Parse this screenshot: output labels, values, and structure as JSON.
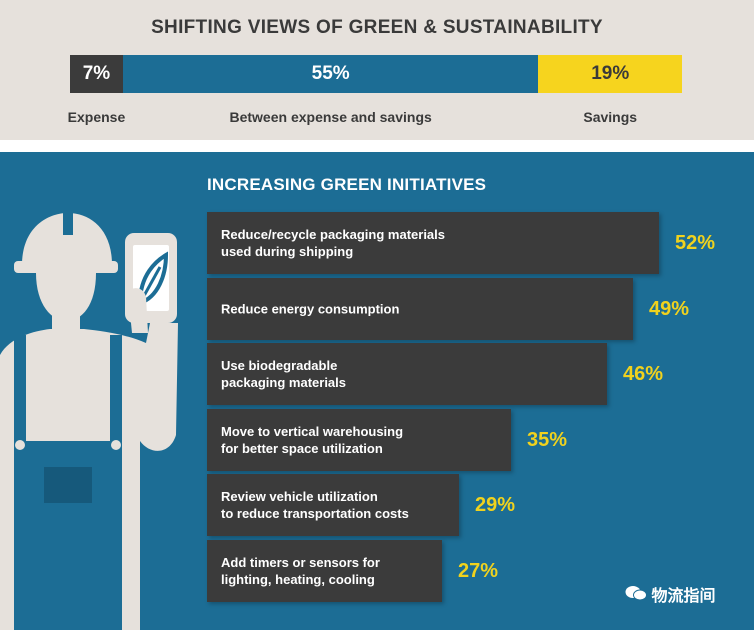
{
  "header": {
    "title": "SHIFTING VIEWS OF GREEN & SUSTAINABILITY"
  },
  "colors": {
    "expense": "#3b3b3b",
    "between": "#1c6d95",
    "savings": "#f6d41e",
    "bar": "#3b3b3b",
    "value": "#f0d21e"
  },
  "chart_data": [
    {
      "type": "bar",
      "orientation": "horizontal-stacked",
      "title": "SHIFTING VIEWS OF GREEN & SUSTAINABILITY",
      "categories": [
        "Expense",
        "Between expense and savings",
        "Savings"
      ],
      "values": [
        7,
        55,
        19
      ],
      "value_labels": [
        "7%",
        "55%",
        "19%"
      ],
      "unit": "%"
    },
    {
      "type": "bar",
      "orientation": "horizontal",
      "title": "INCREASING GREEN INITIATIVES",
      "categories": [
        [
          "Reduce/recycle packaging materials",
          "used during shipping"
        ],
        [
          "Reduce energy consumption"
        ],
        [
          "Use biodegradable",
          "packaging materials"
        ],
        [
          "Move to vertical warehousing",
          "for better space utilization"
        ],
        [
          "Review vehicle utilization",
          "to reduce transportation costs"
        ],
        [
          "Add timers or sensors for",
          "lighting, heating, cooling"
        ]
      ],
      "values": [
        52,
        49,
        46,
        35,
        29,
        27
      ],
      "value_labels": [
        "52%",
        "49%",
        "46%",
        "35%",
        "29%",
        "27%"
      ],
      "unit": "%"
    }
  ],
  "watermark": {
    "text": "物流指间",
    "icon": "wechat-icon"
  }
}
